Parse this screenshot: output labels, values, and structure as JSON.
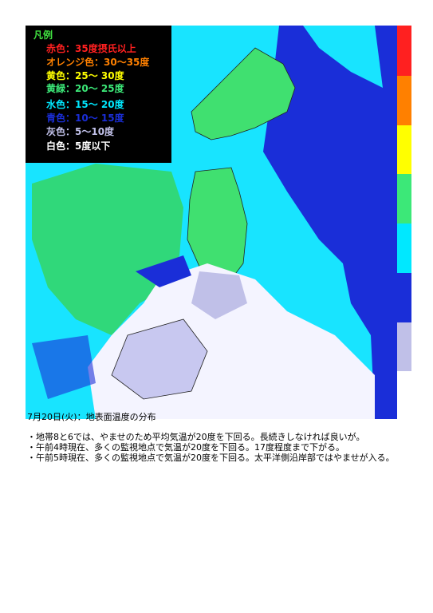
{
  "legend": {
    "title": "凡例",
    "items": [
      {
        "label": "赤色：35度摂氏以上",
        "color": "#ff2020"
      },
      {
        "label": "オレンジ色：30～35度",
        "color": "#ff8000"
      },
      {
        "label": "黄色：25～ 30度",
        "color": "#ffff00"
      },
      {
        "label": "黄緑：20～ 25度",
        "color": "#3ce878"
      },
      {
        "label": "水色：15～ 20度",
        "color": "#00e8ff"
      },
      {
        "label": "青色：10～ 15度",
        "color": "#1a2ed8"
      },
      {
        "label": "灰色：5～10度",
        "color": "#c0c0e8"
      },
      {
        "label": "白色：5度以下",
        "color": "#ffffff"
      }
    ]
  },
  "caption": {
    "title": "7月20日(火)：地表面温度の分布",
    "lines": [
      "・地帯8と6では、やませのため平均気温が20度を下回る。長続きしなければ良いが。",
      "・午前4時現在、多くの監視地点で気温が20度を下回る。17度程度まで下がる。",
      "・午前5時現在、多くの監視地点で気温が20度を下回る。太平洋側沿岸部ではやませが入る。"
    ]
  }
}
